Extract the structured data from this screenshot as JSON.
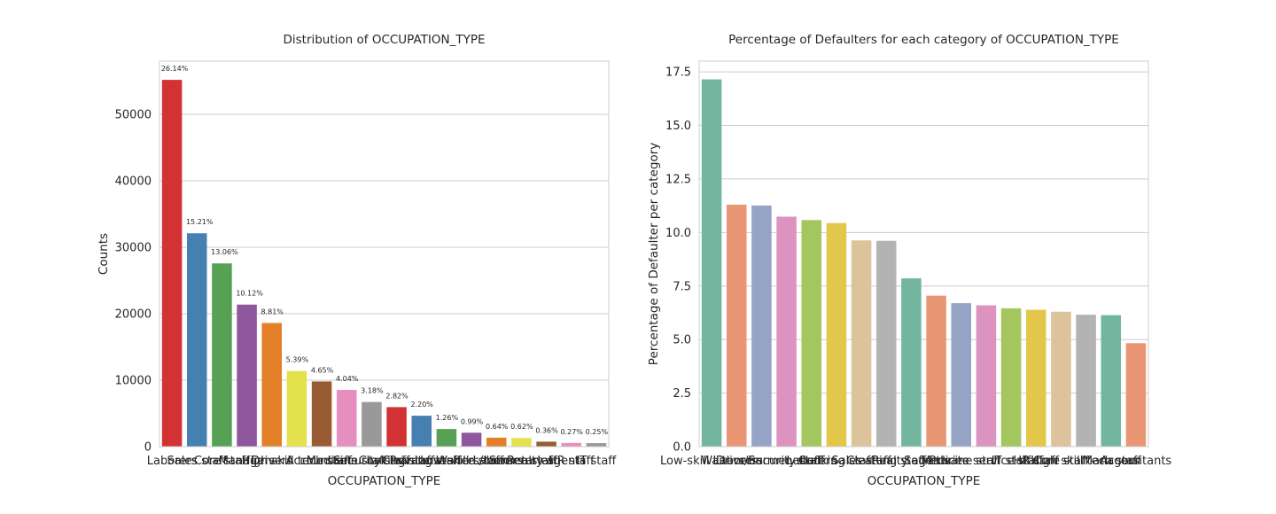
{
  "chart_data": [
    {
      "type": "bar",
      "title": "Distribution of OCCUPATION_TYPE",
      "xlabel": "OCCUPATION_TYPE",
      "ylabel": "Counts",
      "ylim": [
        0,
        58000
      ],
      "yticks": [
        0,
        10000,
        20000,
        30000,
        40000,
        50000
      ],
      "grid": true,
      "categories": [
        "Laborers",
        "Sales staff",
        "Core staff",
        "Managers",
        "Drivers",
        "High skill tech staff",
        "Accountants",
        "Medicine staff",
        "Security staff",
        "Cooking staff",
        "Cleaning staff",
        "Private service staff",
        "Low-skill Laborers",
        "Waiters/barmen staff",
        "Secretaries",
        "Realty agents",
        "HR staff",
        "IT staff"
      ],
      "values": [
        55186,
        32102,
        27570,
        21371,
        18603,
        11380,
        9813,
        8537,
        6721,
        5946,
        4653,
        2652,
        2093,
        1348,
        1305,
        751,
        563,
        526
      ],
      "data_labels": [
        "26.14%",
        "15.21%",
        "13.06%",
        "10.12%",
        "8.81%",
        "5.39%",
        "4.65%",
        "4.04%",
        "3.18%",
        "2.82%",
        "2.20%",
        "1.26%",
        "0.99%",
        "0.64%",
        "0.62%",
        "0.36%",
        "0.27%",
        "0.25%"
      ],
      "colors": [
        "#d23234",
        "#4580b0",
        "#56a153",
        "#8e569c",
        "#e37f26",
        "#e3e24c",
        "#995b34",
        "#e68ec0",
        "#999999",
        "#d23234",
        "#4580b0",
        "#56a153",
        "#8e569c",
        "#e37f26",
        "#e3e24c",
        "#995b34",
        "#e68ec0",
        "#999999"
      ]
    },
    {
      "type": "bar",
      "title": "Percentage of Defaulters for each category of OCCUPATION_TYPE",
      "xlabel": "OCCUPATION_TYPE",
      "ylabel": "Percentage of Defaulter per category",
      "ylim": [
        0,
        18
      ],
      "yticks": [
        0.0,
        2.5,
        5.0,
        7.5,
        10.0,
        12.5,
        15.0,
        17.5
      ],
      "grid": true,
      "categories": [
        "Low-skill Laborers",
        "Drivers",
        "Waiters/barmen staff",
        "Security staff",
        "Laborers",
        "Cooking staff",
        "Sales staff",
        "Cleaning staff",
        "Realty agents",
        "Secretaries",
        "Medicine staff",
        "Private service staff",
        "IT staff",
        "HR staff",
        "Core staff",
        "High skill tech staff",
        "Managers",
        "Accountants"
      ],
      "values": [
        17.15,
        11.3,
        11.26,
        10.74,
        10.58,
        10.44,
        9.63,
        9.61,
        7.86,
        7.05,
        6.7,
        6.6,
        6.46,
        6.39,
        6.3,
        6.16,
        6.14,
        4.83
      ],
      "colors": [
        "#73b69f",
        "#e89673",
        "#95a4c4",
        "#dc93c0",
        "#a3c65e",
        "#e3c74b",
        "#dcc39c",
        "#b3b3b3",
        "#73b69f",
        "#e89673",
        "#95a4c4",
        "#dc93c0",
        "#a3c65e",
        "#e3c74b",
        "#dcc39c",
        "#b3b3b3",
        "#73b69f",
        "#e89673"
      ]
    }
  ]
}
